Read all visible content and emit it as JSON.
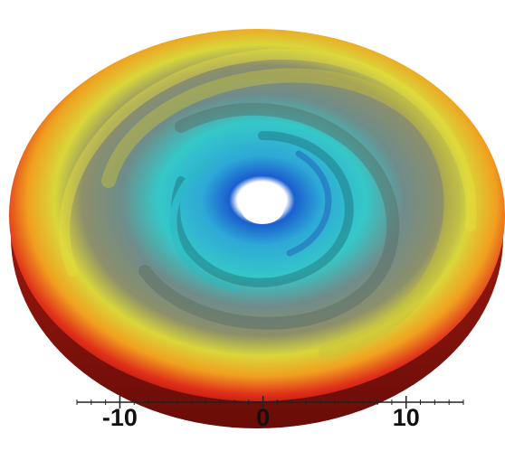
{
  "chart_data": {
    "type": "disk",
    "xlim": [
      -13,
      14
    ],
    "xticks": [
      -10,
      0,
      10
    ],
    "xminorticks": [
      -13,
      -12,
      -11,
      -9,
      -8,
      -7,
      -6,
      -5,
      -4,
      -3,
      -2,
      -1,
      1,
      2,
      3,
      4,
      5,
      6,
      7,
      8,
      9,
      11,
      12,
      13,
      14
    ]
  }
}
